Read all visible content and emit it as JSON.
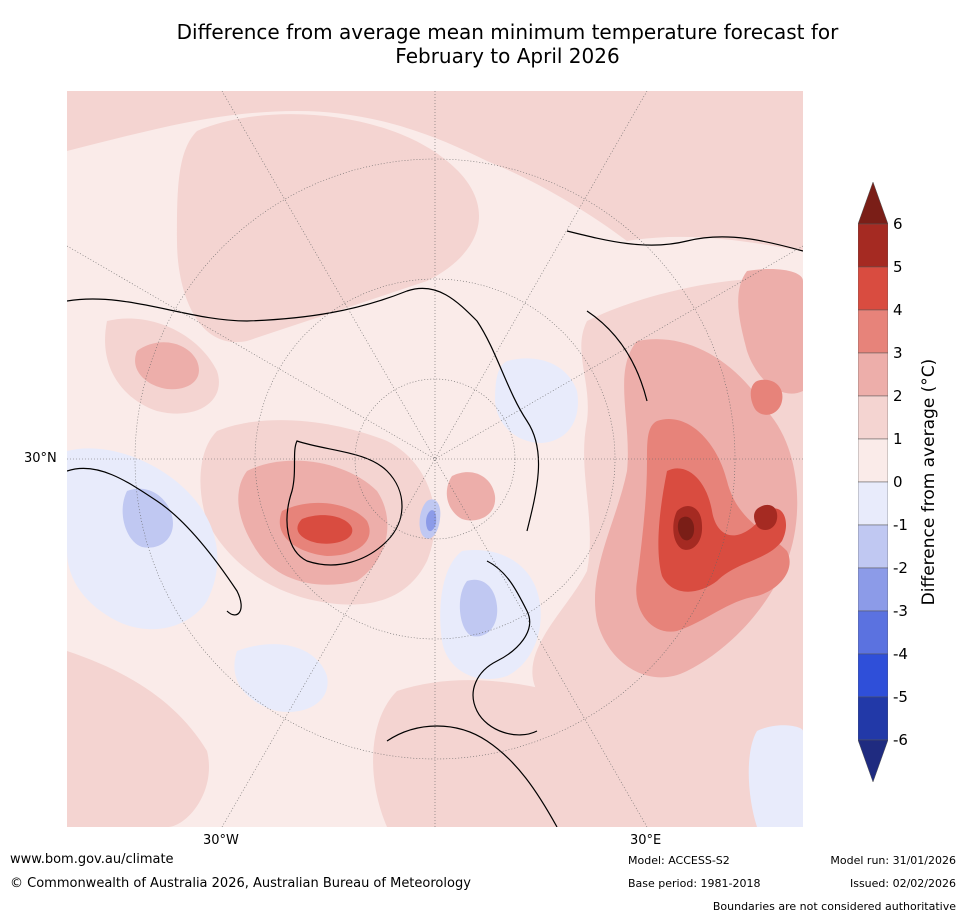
{
  "title": {
    "line1": "Difference from average mean minimum temperature forecast for",
    "line2": "February to April 2026"
  },
  "map": {
    "projection": "north polar stereographic",
    "lat_label": "30°N",
    "lon_labels": [
      "30°W",
      "30°E"
    ],
    "land_outline_color": "#000000",
    "boundary_color": "#808080",
    "gridline_color": "#666666"
  },
  "colorbar": {
    "label": "Difference from average (°C)",
    "ticks": [
      "6",
      "5",
      "4",
      "3",
      "2",
      "1",
      "0",
      "-1",
      "-2",
      "-3",
      "-4",
      "-5",
      "-6"
    ],
    "bins": [
      {
        "range": "> 6",
        "color": "#7a1e17"
      },
      {
        "range": "5 to 6",
        "color": "#a52a22"
      },
      {
        "range": "4 to 5",
        "color": "#d94c40"
      },
      {
        "range": "3 to 4",
        "color": "#e7837a"
      },
      {
        "range": "2 to 3",
        "color": "#edaeaa"
      },
      {
        "range": "1 to 2",
        "color": "#f4d4d1"
      },
      {
        "range": "0 to 1",
        "color": "#faebe9"
      },
      {
        "range": "-1 to 0",
        "color": "#e8ebfb"
      },
      {
        "range": "-2 to -1",
        "color": "#c0c8f2"
      },
      {
        "range": "-3 to -2",
        "color": "#8c9be8"
      },
      {
        "range": "-4 to -3",
        "color": "#5b72e0"
      },
      {
        "range": "-5 to -4",
        "color": "#2f4fd9"
      },
      {
        "range": "-6 to -5",
        "color": "#2239a8"
      },
      {
        "range": "< -6",
        "color": "#1f2b80"
      }
    ]
  },
  "footer": {
    "website": "www.bom.gov.au/climate",
    "copyright": "© Commonwealth of Australia 2026, Australian Bureau of Meteorology",
    "model": "Model: ACCESS-S2",
    "base_period": "Base period: 1981-2018",
    "model_run": "Model run: 31/01/2026",
    "issued": "Issued: 02/02/2026",
    "disclaimer": "Boundaries are not considered authoritative"
  }
}
